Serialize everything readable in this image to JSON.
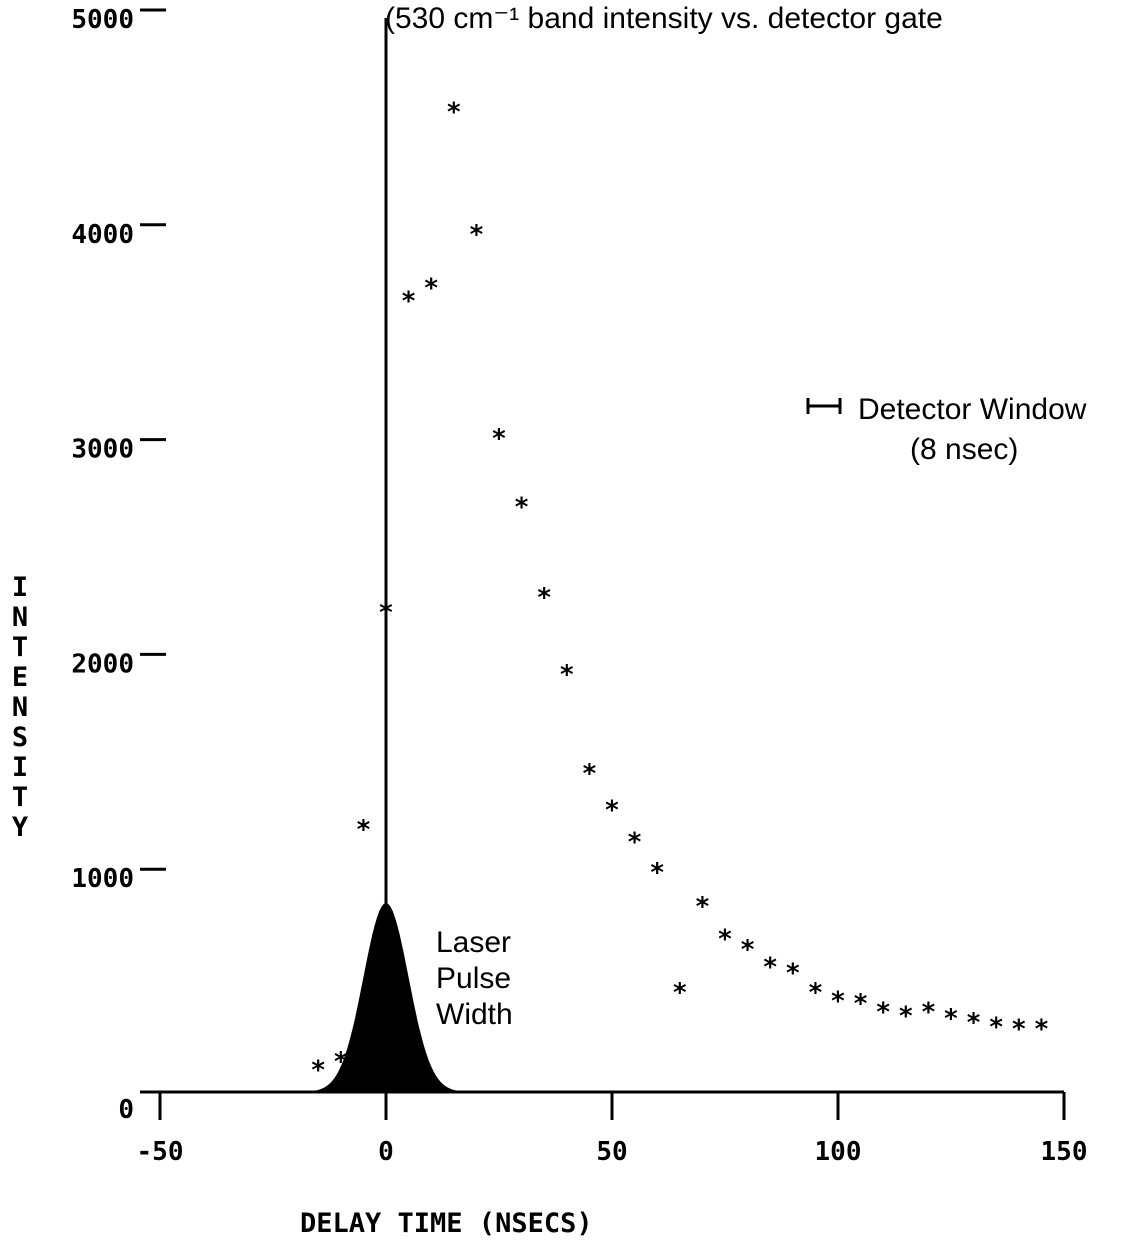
{
  "chart_data": {
    "type": "scatter",
    "title": "(530 cm⁻¹ band intensity vs. detector gate",
    "xlabel": "DELAY TIME (NSECS)",
    "ylabel": "INTENSITY",
    "xlim": [
      -50,
      150
    ],
    "ylim": [
      0,
      5000
    ],
    "x_ticks": [
      "-50",
      "0",
      "50",
      "100",
      "150"
    ],
    "y_ticks": [
      "0",
      "1000",
      "2000",
      "3000",
      "4000",
      "5000"
    ],
    "grid": false,
    "series": [
      {
        "marker": "*",
        "x": [
          -15,
          -10,
          -5,
          0,
          5,
          10,
          15,
          20,
          25,
          30,
          35,
          40,
          45,
          50,
          55,
          60,
          65,
          70,
          75,
          80,
          85,
          90,
          95,
          100,
          105,
          110,
          115,
          120,
          125,
          130,
          135,
          140,
          145
        ],
        "y": [
          110,
          150,
          1230,
          2240,
          3690,
          3750,
          4570,
          4000,
          3050,
          2730,
          2310,
          1950,
          1490,
          1320,
          1170,
          1030,
          470,
          870,
          720,
          670,
          590,
          560,
          470,
          430,
          420,
          380,
          360,
          380,
          350,
          330,
          310,
          300,
          300
        ]
      }
    ],
    "overlays": {
      "vertical_line_x": 0,
      "laser_pulse": {
        "center": 0,
        "peak": 880,
        "sigma": 5
      }
    },
    "annotations": {
      "laser_pulse": [
        "Laser",
        "Pulse",
        "Width"
      ],
      "detector_window_line1": "Detector  Window",
      "detector_window_line2": "(8 nsec)"
    }
  },
  "colors": {
    "ink": "#000000",
    "background": "#ffffff"
  }
}
